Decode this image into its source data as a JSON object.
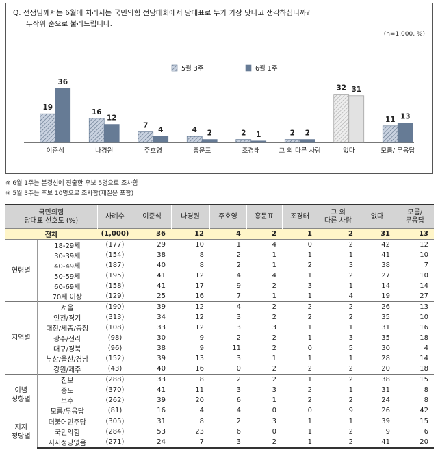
{
  "question_line1": "Q. 선생님께서는 6월에 치러지는 국민의힘 전당대회에서 당대표로 누가 가장 낫다고 생각하십니까?",
  "question_line2": "무작위 순으로 불러드립니다.",
  "n_note": "(n=1,000, %)",
  "notes": [
    "※ 6월 1주는 본경선에 진출한 후보 5명으로 조사함",
    "※ 5월 3주는 후보 10명으로 조사함(재질문 포함)"
  ],
  "chart_data": {
    "type": "bar",
    "categories": [
      "이준석",
      "나경원",
      "주호영",
      "홍문표",
      "조경태",
      "그 외 다른 사람",
      "없다",
      "모름/ 무응답"
    ],
    "series": [
      {
        "name": "5월 3주",
        "values": [
          19,
          16,
          7,
          4,
          2,
          2,
          32,
          11
        ]
      },
      {
        "name": "6월 1주",
        "values": [
          36,
          12,
          4,
          2,
          1,
          2,
          31,
          13
        ]
      }
    ],
    "ylim": [
      0,
      40
    ],
    "legend_position": "top-center",
    "colors": {
      "may_fill": "#c9d2e0",
      "june": "#667b95",
      "none": "#e2e2e2",
      "none_edge": "#999999"
    }
  },
  "table": {
    "header_label": "국민의힘\n당대표 선호도 (%)",
    "columns": [
      "사례수",
      "이준석",
      "나경원",
      "주호영",
      "홍문표",
      "조경태",
      "그 외\n다른 사람",
      "없다",
      "모름/\n무응답"
    ],
    "total": {
      "label": "전체",
      "count": "(1,000)",
      "values": [
        "36",
        "12",
        "4",
        "2",
        "1",
        "2",
        "31",
        "13"
      ]
    },
    "groups": [
      {
        "name": "연령별",
        "rows": [
          {
            "label": "18-29세",
            "count": "(177)",
            "values": [
              "29",
              "10",
              "1",
              "4",
              "0",
              "2",
              "42",
              "12"
            ]
          },
          {
            "label": "30-39세",
            "count": "(154)",
            "values": [
              "38",
              "8",
              "2",
              "1",
              "1",
              "1",
              "41",
              "10"
            ]
          },
          {
            "label": "40-49세",
            "count": "(187)",
            "values": [
              "40",
              "8",
              "2",
              "1",
              "2",
              "3",
              "38",
              "7"
            ]
          },
          {
            "label": "50-59세",
            "count": "(195)",
            "values": [
              "41",
              "12",
              "4",
              "4",
              "1",
              "2",
              "27",
              "10"
            ]
          },
          {
            "label": "60-69세",
            "count": "(158)",
            "values": [
              "41",
              "17",
              "9",
              "2",
              "3",
              "1",
              "14",
              "14"
            ]
          },
          {
            "label": "70세 이상",
            "count": "(129)",
            "values": [
              "25",
              "16",
              "7",
              "1",
              "1",
              "4",
              "19",
              "27"
            ]
          }
        ]
      },
      {
        "name": "지역별",
        "rows": [
          {
            "label": "서울",
            "count": "(190)",
            "values": [
              "39",
              "12",
              "4",
              "2",
              "2",
              "2",
              "26",
              "13"
            ]
          },
          {
            "label": "인천/경기",
            "count": "(313)",
            "values": [
              "34",
              "12",
              "3",
              "2",
              "2",
              "2",
              "35",
              "10"
            ]
          },
          {
            "label": "대전/세종/충청",
            "count": "(108)",
            "values": [
              "33",
              "12",
              "3",
              "3",
              "1",
              "1",
              "31",
              "16"
            ]
          },
          {
            "label": "광주/전라",
            "count": "(98)",
            "values": [
              "30",
              "9",
              "2",
              "2",
              "1",
              "3",
              "35",
              "18"
            ]
          },
          {
            "label": "대구/경북",
            "count": "(96)",
            "values": [
              "38",
              "9",
              "11",
              "2",
              "0",
              "5",
              "30",
              "4"
            ]
          },
          {
            "label": "부산/울산/경남",
            "count": "(152)",
            "values": [
              "39",
              "13",
              "3",
              "1",
              "1",
              "1",
              "28",
              "14"
            ]
          },
          {
            "label": "강원/제주",
            "count": "(43)",
            "values": [
              "40",
              "16",
              "0",
              "2",
              "2",
              "2",
              "20",
              "18"
            ]
          }
        ]
      },
      {
        "name": "이념\n성향별",
        "rows": [
          {
            "label": "진보",
            "count": "(288)",
            "values": [
              "33",
              "8",
              "2",
              "2",
              "1",
              "2",
              "38",
              "15"
            ]
          },
          {
            "label": "중도",
            "count": "(370)",
            "values": [
              "41",
              "11",
              "3",
              "3",
              "2",
              "1",
              "31",
              "8"
            ]
          },
          {
            "label": "보수",
            "count": "(262)",
            "values": [
              "39",
              "20",
              "6",
              "1",
              "2",
              "2",
              "24",
              "8"
            ]
          },
          {
            "label": "모름/무응답",
            "count": "(81)",
            "values": [
              "16",
              "4",
              "4",
              "0",
              "0",
              "9",
              "26",
              "42"
            ]
          }
        ]
      },
      {
        "name": "지지\n정당별",
        "rows": [
          {
            "label": "더불어민주당",
            "count": "(305)",
            "values": [
              "31",
              "8",
              "2",
              "3",
              "1",
              "1",
              "39",
              "15"
            ]
          },
          {
            "label": "국민의힘",
            "count": "(284)",
            "values": [
              "53",
              "23",
              "6",
              "0",
              "1",
              "2",
              "9",
              "6"
            ]
          },
          {
            "label": "지지정당없음",
            "count": "(271)",
            "values": [
              "24",
              "7",
              "3",
              "2",
              "1",
              "2",
              "41",
              "20"
            ]
          }
        ]
      }
    ]
  }
}
